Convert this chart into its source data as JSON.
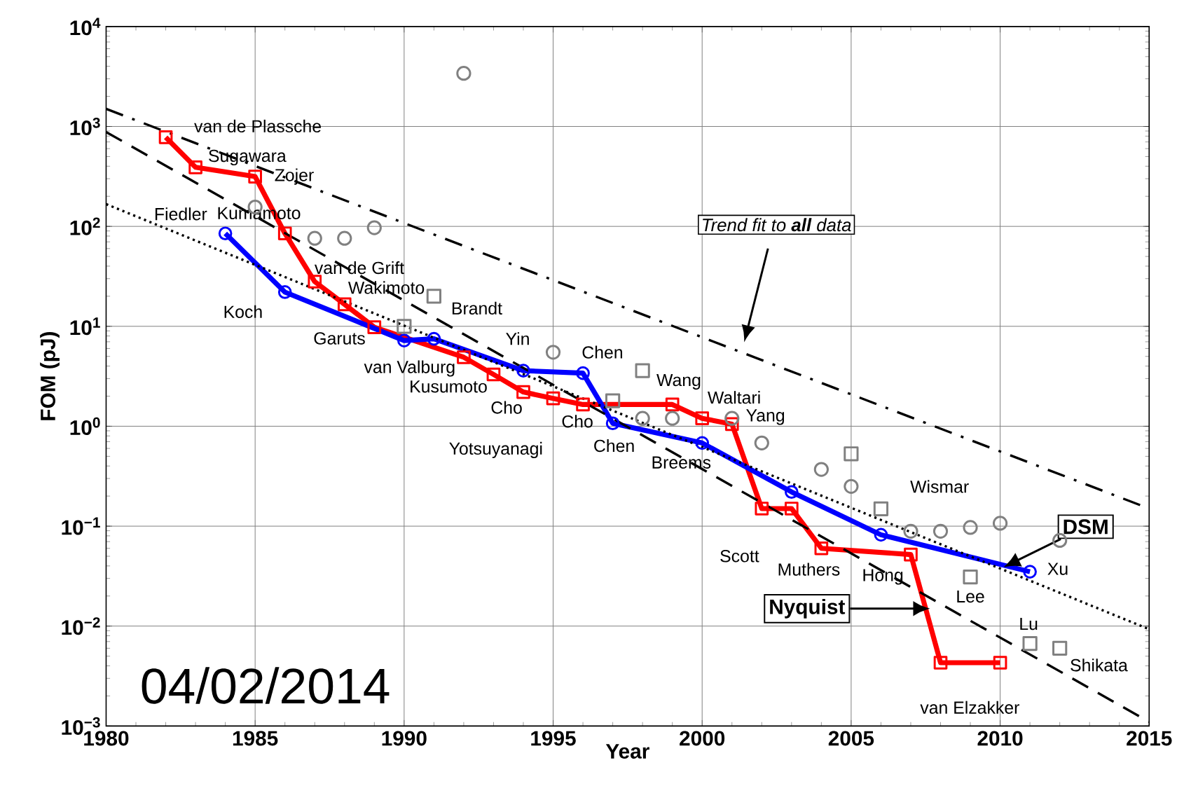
{
  "chart_data": {
    "type": "line",
    "xlabel": "Year",
    "ylabel": "FOM (pJ)",
    "log": "y",
    "grid": true,
    "xlim": [
      1980,
      2015
    ],
    "xticks": [
      1980,
      1985,
      1990,
      1995,
      2000,
      2005,
      2010,
      2015
    ],
    "ylim": [
      0.001,
      10000
    ],
    "yticks": [
      {
        "value": 0.001,
        "label": "10$^{−3}$"
      },
      {
        "value": 0.01,
        "label": "10$^{−2}$"
      },
      {
        "value": 0.1,
        "label": "10$^{−1}$"
      },
      {
        "value": 1,
        "label": "10$^{0}$"
      },
      {
        "value": 10,
        "label": "10$^{1}$"
      },
      {
        "value": 100,
        "label": "10$^{2}$"
      },
      {
        "value": 1000,
        "label": "10$^{3}$"
      },
      {
        "value": 10000,
        "label": "10$^{4}$"
      }
    ],
    "series": [
      {
        "name": "Nyquist",
        "color": "#ff0000",
        "marker": "square",
        "line_style": "solid",
        "x": [
          1982,
          1983,
          1985,
          1986,
          1987,
          1988,
          1989,
          1992,
          1993,
          1994,
          1995,
          1996,
          1999,
          2000,
          2001,
          2002,
          2003,
          2004,
          2007,
          2008,
          2010
        ],
        "values": [
          780,
          390,
          315,
          85,
          28,
          16.6,
          9.8,
          4.9,
          3.3,
          2.2,
          1.9,
          1.65,
          1.65,
          1.2,
          1.05,
          0.15,
          0.15,
          0.06,
          0.052,
          0.0043,
          0.0043
        ]
      },
      {
        "name": "DSM",
        "color": "#0000ff",
        "marker": "circle",
        "line_style": "solid",
        "x": [
          1984,
          1986,
          1990,
          1991,
          1994,
          1996,
          1997,
          2000,
          2003,
          2006,
          2011
        ],
        "values": [
          85,
          22,
          7.2,
          7.5,
          3.6,
          3.4,
          1.07,
          0.68,
          0.22,
          0.082,
          0.035
        ]
      },
      {
        "type": "scatter",
        "color": "#808080",
        "marker": "circle",
        "x": [
          1985,
          1987,
          1988,
          1989,
          1992,
          1995,
          1998,
          1999,
          2001,
          2002,
          2004,
          2005,
          2007,
          2008,
          2009,
          2010,
          2012
        ],
        "values": [
          156,
          76,
          76,
          97,
          3400,
          5.5,
          1.2,
          1.2,
          1.2,
          0.68,
          0.37,
          0.25,
          0.089,
          0.089,
          0.097,
          0.107,
          0.072
        ]
      },
      {
        "type": "scatter",
        "color": "#808080",
        "marker": "square",
        "x": [
          1990,
          1991,
          1997,
          1998,
          2005,
          2006,
          2009,
          2011,
          2012
        ],
        "values": [
          10,
          20,
          1.8,
          3.6,
          0.53,
          0.149,
          0.031,
          0.0067,
          0.006
        ]
      },
      {
        "color": "#000000",
        "marker": "none",
        "line_style": "dotted",
        "x": [
          1980,
          2015
        ],
        "values": [
          167,
          0.0093
        ]
      },
      {
        "color": "#000000",
        "marker": "none",
        "line_style": "dashed",
        "x": [
          1980,
          2015
        ],
        "values": [
          880,
          0.0011
        ]
      },
      {
        "color": "#000000",
        "marker": "none",
        "line_style": "dashdot",
        "x": [
          1980,
          2015
        ],
        "values": [
          1500,
          0.15
        ]
      }
    ],
    "annotations": [
      {
        "text": "van de Plassche",
        "x": 1982,
        "y": 780
      },
      {
        "text": "Sugawara",
        "x": 1983,
        "y": 390
      },
      {
        "text": "Zojer",
        "x": 1985,
        "y": 315
      },
      {
        "text": "Kumamoto",
        "x": 1987,
        "y": 76
      },
      {
        "text": "Fiedler",
        "x": 1984,
        "y": 85
      },
      {
        "text": "Koch",
        "x": 1986,
        "y": 22
      },
      {
        "text": "van de Grift",
        "x": 1987,
        "y": 28
      },
      {
        "text": "Wakimoto",
        "x": 1988,
        "y": 16.6
      },
      {
        "text": "Brandt",
        "x": 1990,
        "y": 10
      },
      {
        "text": "Garuts",
        "x": 1989,
        "y": 9.8
      },
      {
        "text": "Yin",
        "x": 1994,
        "y": 3.6
      },
      {
        "text": "van Valburg",
        "x": 1990,
        "y": 7.2
      },
      {
        "text": "Kusumoto",
        "x": 1992,
        "y": 4.9
      },
      {
        "text": "Chen",
        "x": 1996,
        "y": 3.4
      },
      {
        "text": "Cho",
        "x": 1994,
        "y": 2.2
      },
      {
        "text": "Yotsuyanagi",
        "x": 1995,
        "y": 1.9
      },
      {
        "text": "Cho",
        "x": 1996,
        "y": 1.65
      },
      {
        "text": "Chen",
        "x": 1997,
        "y": 1.07
      },
      {
        "text": "Wang",
        "x": 1998,
        "y": 3.6
      },
      {
        "text": "Waltari",
        "x": 2000,
        "y": 1.2
      },
      {
        "text": "Yang",
        "x": 2001,
        "y": 1.05
      },
      {
        "text": "Breems",
        "x": 2000,
        "y": 0.68
      },
      {
        "text": "Scott",
        "x": 2002,
        "y": 0.15
      },
      {
        "text": "Muthers",
        "x": 2004,
        "y": 0.06
      },
      {
        "text": "Wismar",
        "x": 2006,
        "y": 0.149
      },
      {
        "text": "Hong",
        "x": 2007,
        "y": 0.052
      },
      {
        "text": "Lee",
        "x": 2009,
        "y": 0.031
      },
      {
        "text": "Xu",
        "x": 2011,
        "y": 0.035
      },
      {
        "text": "Lu",
        "x": 2011,
        "y": 0.0067
      },
      {
        "text": "Shikata",
        "x": 2012,
        "y": 0.006
      },
      {
        "text": "van Elzakker",
        "x": 2008,
        "y": 0.0043
      },
      "Trend fit to **all** data",
      "04/02/2014"
    ]
  }
}
